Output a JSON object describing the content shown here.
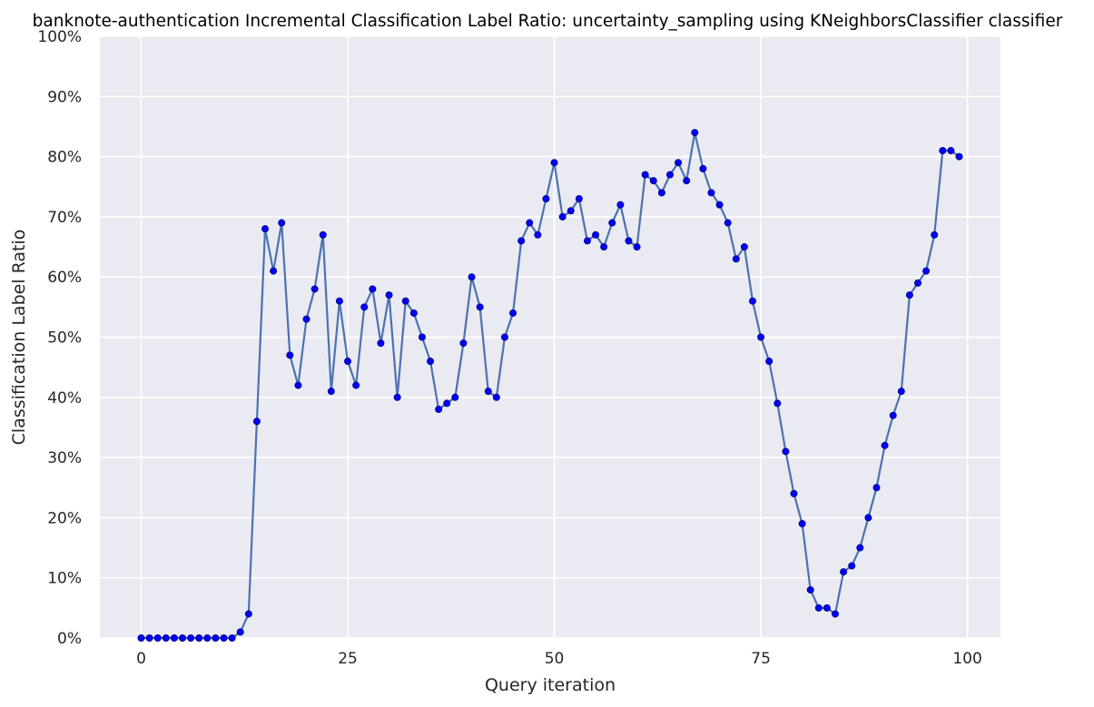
{
  "chart_data": {
    "type": "line",
    "title": "banknote-authentication Incremental Classification Label Ratio: uncertainty_sampling using KNeighborsClassifier classifier",
    "xlabel": "Query iteration",
    "ylabel": "Classification Label Ratio",
    "xlim": [
      -5,
      104
    ],
    "ylim": [
      0,
      1
    ],
    "x_ticks": [
      0,
      25,
      50,
      75,
      100
    ],
    "y_ticks": [
      0,
      0.1,
      0.2,
      0.3,
      0.4,
      0.5,
      0.6,
      0.7,
      0.8,
      0.9,
      1.0
    ],
    "x_tick_labels": [
      "0",
      "25",
      "50",
      "75",
      "100"
    ],
    "y_tick_labels": [
      "0%",
      "10%",
      "20%",
      "30%",
      "40%",
      "50%",
      "60%",
      "70%",
      "80%",
      "90%",
      "100%"
    ],
    "grid": true,
    "legend": "none",
    "line_color": "#4c72b0",
    "marker_color": "#0000ff",
    "background_color": "#eaeaf2",
    "grid_color": "#ffffff",
    "series": [
      {
        "values": [
          0,
          0,
          0,
          0,
          0,
          0,
          0,
          0,
          0,
          0,
          0,
          0,
          0.01,
          0.04,
          0.36,
          0.68,
          0.61,
          0.69,
          0.47,
          0.42,
          0.53,
          0.58,
          0.67,
          0.41,
          0.56,
          0.46,
          0.42,
          0.55,
          0.58,
          0.49,
          0.57,
          0.4,
          0.56,
          0.54,
          0.5,
          0.46,
          0.38,
          0.39,
          0.4,
          0.49,
          0.6,
          0.55,
          0.41,
          0.4,
          0.5,
          0.54,
          0.66,
          0.69,
          0.67,
          0.73,
          0.79,
          0.7,
          0.71,
          0.73,
          0.66,
          0.67,
          0.65,
          0.69,
          0.72,
          0.66,
          0.65,
          0.77,
          0.76,
          0.74,
          0.77,
          0.79,
          0.76,
          0.84,
          0.78,
          0.74,
          0.72,
          0.69,
          0.63,
          0.65,
          0.56,
          0.5,
          0.46,
          0.39,
          0.31,
          0.24,
          0.19,
          0.08,
          0.05,
          0.05,
          0.04,
          0.11,
          0.12,
          0.15,
          0.2,
          0.25,
          0.32,
          0.37,
          0.41,
          0.57,
          0.59,
          0.61,
          0.67,
          0.81,
          0.81,
          0.8
        ]
      }
    ]
  }
}
